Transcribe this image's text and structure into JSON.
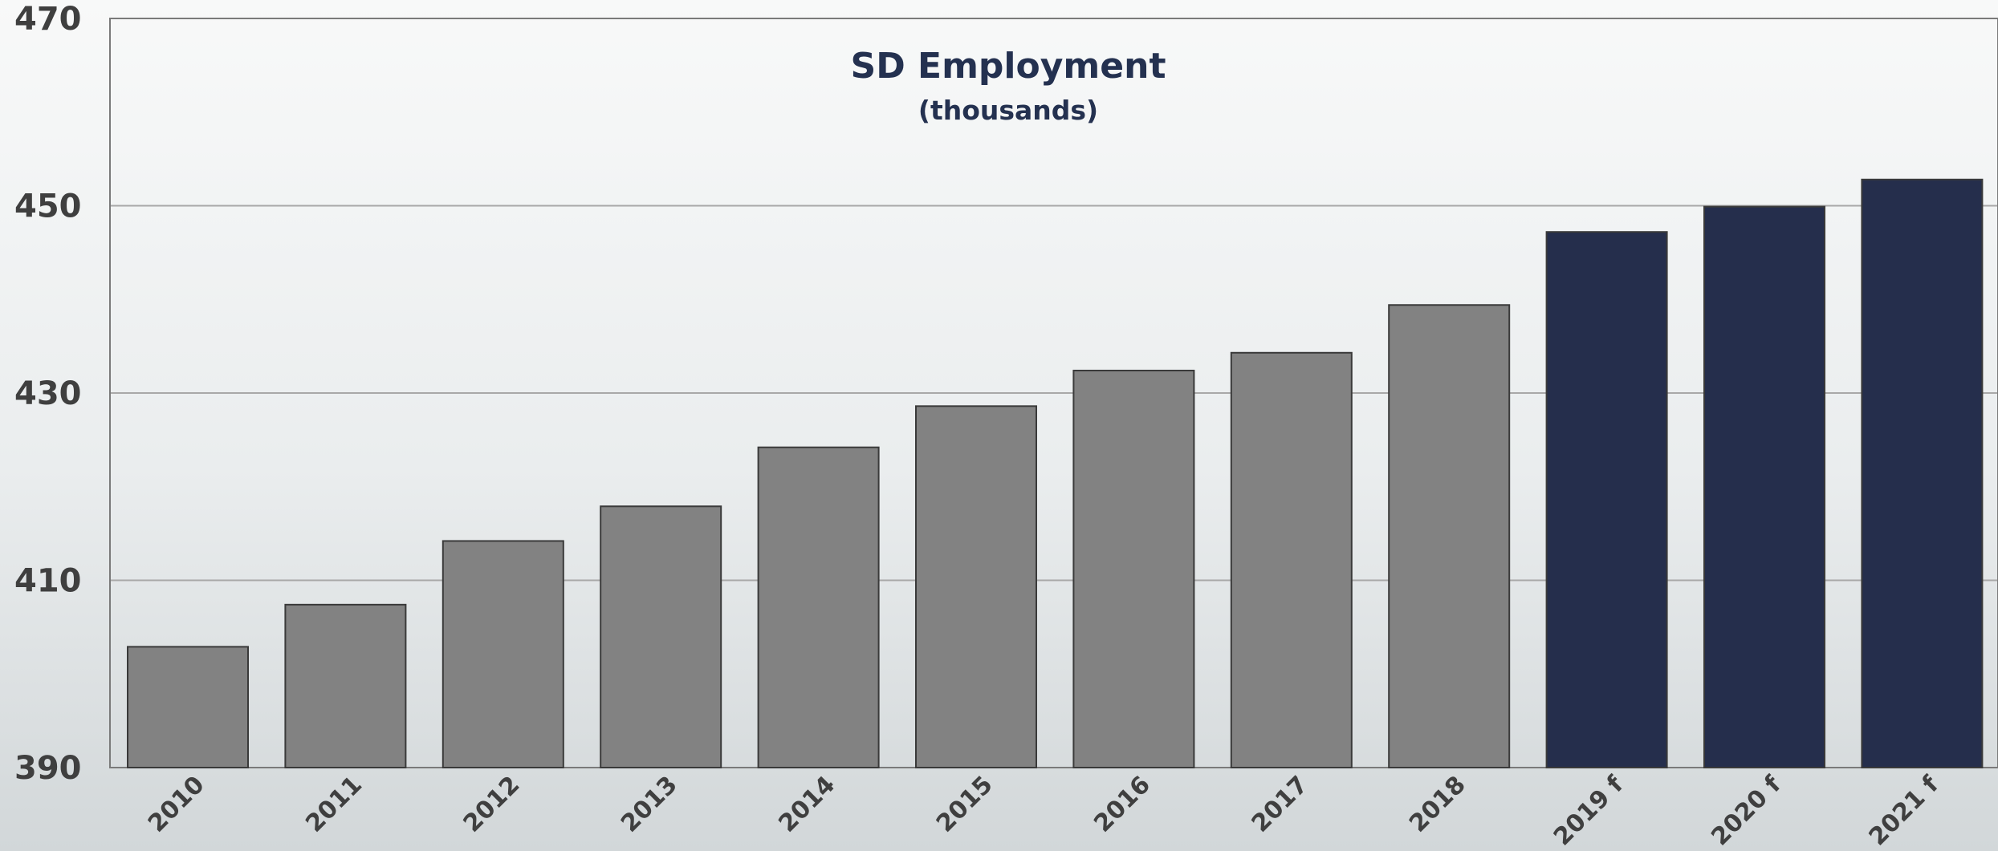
{
  "chart_data": {
    "type": "bar",
    "title": "SD Employment",
    "subtitle": "(thousands)",
    "xlabel": "",
    "ylabel": "",
    "categories": [
      "2010",
      "2011",
      "2012",
      "2013",
      "2014",
      "2015",
      "2016",
      "2017",
      "2018",
      "2019 f",
      "2020 f",
      "2021 f"
    ],
    "values": [
      402.9,
      407.4,
      414.2,
      417.9,
      424.2,
      428.6,
      432.4,
      434.3,
      439.4,
      447.2,
      449.9,
      452.8
    ],
    "forecast": [
      false,
      false,
      false,
      false,
      false,
      false,
      false,
      false,
      false,
      true,
      true,
      true
    ],
    "ylim": [
      390,
      470
    ],
    "yticks": [
      "390",
      "410",
      "430",
      "450",
      "470"
    ],
    "grid": true,
    "legend": "none",
    "colors": {
      "actual": "#828282",
      "forecast": "#252e4c",
      "bar_outline": "#3a3a3a",
      "title": "#243150",
      "gridline": "#a8a8a8"
    }
  }
}
